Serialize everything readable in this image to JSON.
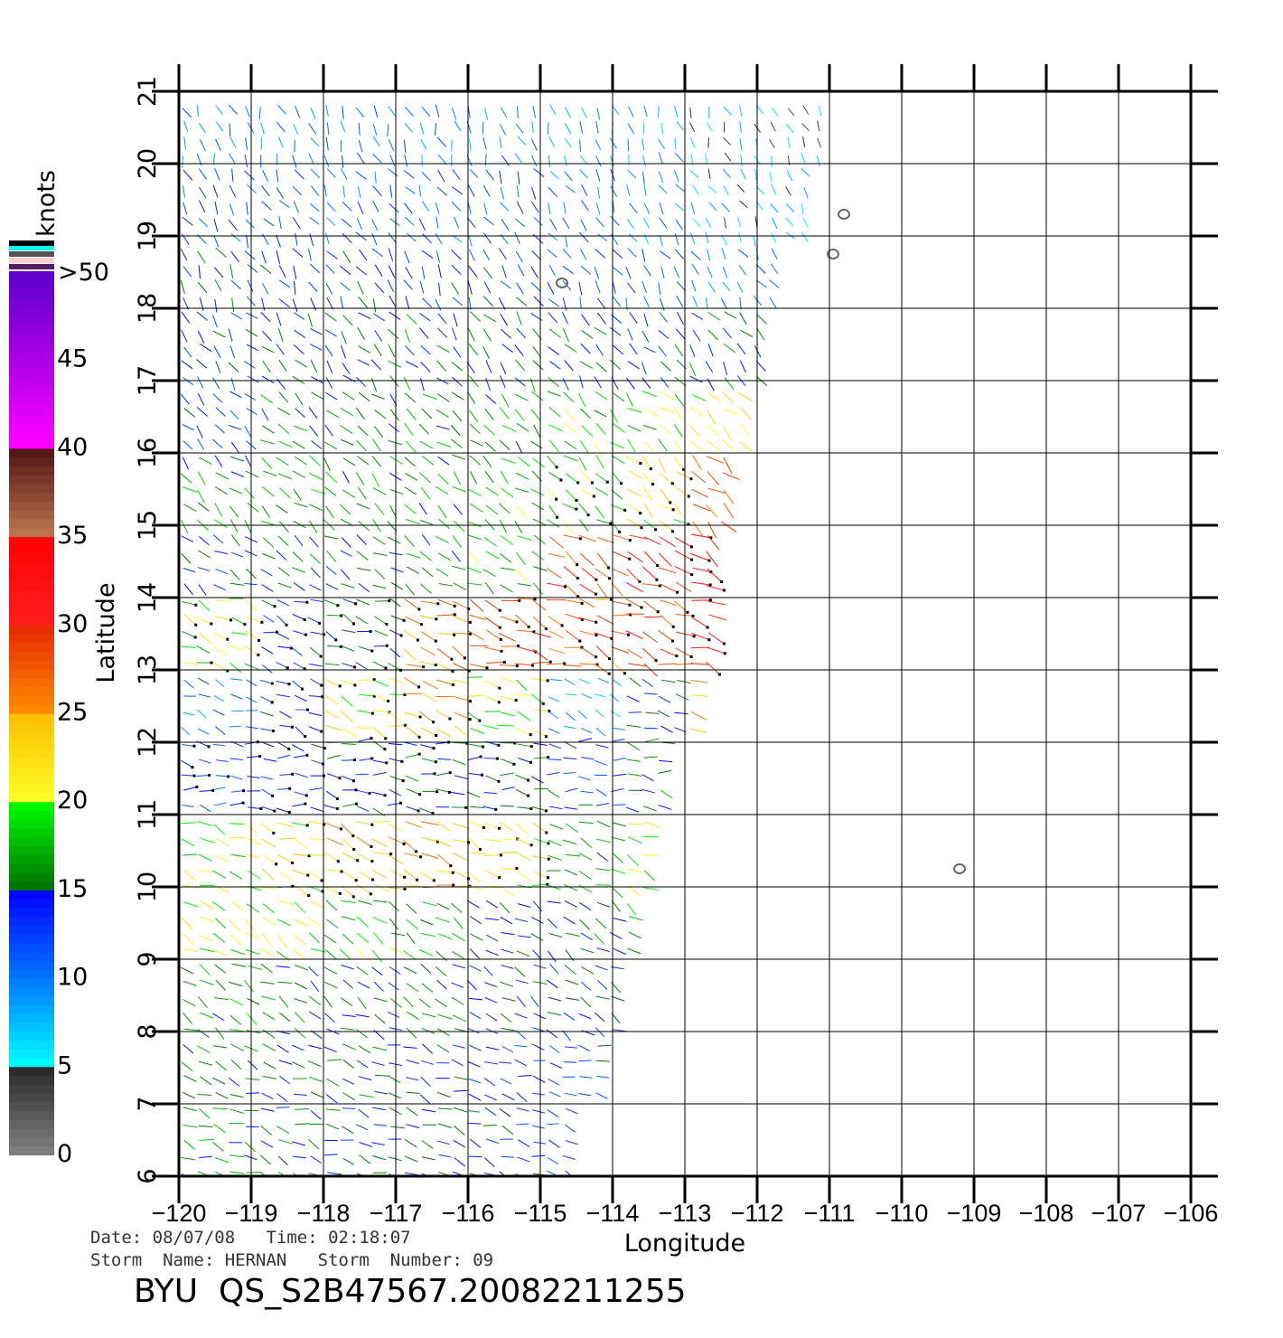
{
  "chart_data": {
    "type": "wind-vector",
    "xlabel": "Longitude",
    "ylabel": "Latitude",
    "xlim": [
      -120,
      -106
    ],
    "ylim": [
      6,
      21
    ],
    "x_ticks": [
      "−120",
      "−119",
      "−118",
      "−117",
      "−116",
      "−115",
      "−114",
      "−113",
      "−112",
      "−111",
      "−110",
      "−109",
      "−108",
      "−107",
      "−106"
    ],
    "y_ticks": [
      "6",
      "7",
      "8",
      "9",
      "10",
      "11",
      "12",
      "13",
      "14",
      "15",
      "16",
      "17",
      "18",
      "19",
      "20",
      "21"
    ],
    "grid": true,
    "colorbar": {
      "label": "knots",
      "ticks": [
        "0",
        "5",
        "10",
        "15",
        "20",
        "25",
        "30",
        "35",
        "40",
        "45",
        ">50"
      ],
      "range": [
        0,
        50
      ]
    },
    "wind_grid": {
      "lat_centers": [
        20.5,
        19.5,
        18.5,
        17.5,
        16.5,
        15.5,
        14.5,
        13.5,
        12.5,
        11.5,
        10.5,
        9.5,
        8.5,
        7.5,
        6.5
      ],
      "lon_centers": [
        -119.5,
        -118.5,
        -117.5,
        -116.5,
        -115.5,
        -114.5,
        -113.5,
        -112.5,
        -111.5
      ],
      "swath_east_edge_lon": [
        -111.0,
        -111.2,
        -111.6,
        -111.9,
        -112.2,
        -112.3,
        -112.5,
        -112.6,
        -112.9,
        -113.2,
        -113.4,
        -113.6,
        -113.9,
        -114.2,
        -114.6
      ],
      "speed_knots": [
        [
          10,
          10,
          10,
          10,
          10,
          9,
          8,
          6,
          5
        ],
        [
          12,
          12,
          11,
          11,
          11,
          10,
          9,
          7,
          7
        ],
        [
          14,
          13,
          13,
          13,
          13,
          12,
          11,
          10,
          10
        ],
        [
          13,
          14,
          15,
          15,
          15,
          15,
          14,
          15,
          15
        ],
        [
          13,
          16,
          16,
          17,
          17,
          18,
          19,
          22,
          22
        ],
        [
          17,
          18,
          17,
          17,
          18,
          19,
          22,
          27,
          27
        ],
        [
          14,
          15,
          15,
          16,
          18,
          28,
          30,
          32,
          32
        ],
        [
          20,
          14,
          15,
          26,
          28,
          27,
          28,
          30,
          30
        ],
        [
          10,
          13,
          22,
          24,
          20,
          8,
          14,
          24,
          24
        ],
        [
          12,
          13,
          14,
          15,
          15,
          13,
          16,
          26,
          26
        ],
        [
          20,
          22,
          24,
          25,
          22,
          17,
          20,
          22,
          22
        ],
        [
          20,
          20,
          18,
          17,
          15,
          15,
          18,
          18,
          18
        ],
        [
          17,
          16,
          15,
          15,
          14,
          14,
          16,
          16,
          16
        ],
        [
          16,
          15,
          15,
          14,
          13,
          13,
          13,
          13,
          13
        ],
        [
          16,
          15,
          14,
          14,
          13,
          12,
          12,
          12,
          12
        ]
      ],
      "direction_deg_by_row": [
        160,
        150,
        150,
        140,
        130,
        130,
        120,
        110,
        110,
        100,
        110,
        120,
        120,
        110,
        110
      ],
      "rain_flagged": [
        [
          0,
          0,
          0,
          0,
          0,
          0,
          0,
          0,
          0
        ],
        [
          0,
          0,
          0,
          0,
          0,
          0,
          0,
          0,
          0
        ],
        [
          0,
          0,
          0,
          0,
          0,
          0,
          0,
          0,
          0
        ],
        [
          0,
          0,
          0,
          0,
          0,
          0,
          0,
          0,
          0
        ],
        [
          0,
          0,
          0,
          0,
          0,
          0,
          0,
          0,
          0
        ],
        [
          0,
          0,
          0,
          0,
          0,
          1,
          1,
          0,
          0
        ],
        [
          0,
          0,
          0,
          0,
          0,
          1,
          1,
          1,
          0
        ],
        [
          1,
          1,
          1,
          1,
          1,
          1,
          1,
          1,
          0
        ],
        [
          0,
          1,
          1,
          1,
          1,
          0,
          0,
          0,
          0
        ],
        [
          1,
          1,
          1,
          1,
          1,
          0,
          0,
          0,
          0
        ],
        [
          0,
          1,
          1,
          1,
          1,
          0,
          0,
          0,
          0
        ],
        [
          0,
          0,
          0,
          0,
          0,
          0,
          0,
          0,
          0
        ],
        [
          0,
          0,
          0,
          0,
          0,
          0,
          0,
          0,
          0
        ],
        [
          0,
          0,
          0,
          0,
          0,
          0,
          0,
          0,
          0
        ],
        [
          0,
          0,
          0,
          0,
          0,
          0,
          0,
          0,
          0
        ]
      ]
    },
    "land_contours": [
      {
        "lon": -114.7,
        "lat": 18.35
      },
      {
        "lon": -110.8,
        "lat": 19.3
      },
      {
        "lon": -110.95,
        "lat": 18.75
      },
      {
        "lon": -109.2,
        "lat": 10.25
      }
    ]
  },
  "footer": {
    "date_line": "Date: 08/07/08   Time: 02:18:07",
    "storm_line": "Storm  Name: HERNAN   Storm  Number: 09",
    "product_id": "BYU  QS_S2B47567.20082211255"
  }
}
